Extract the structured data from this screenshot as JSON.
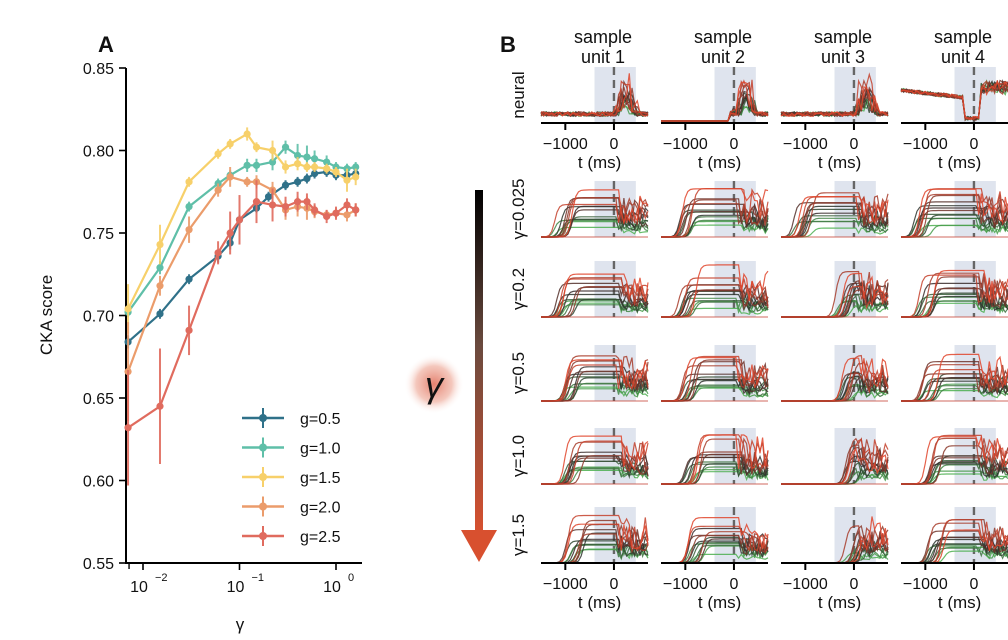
{
  "chart_data": [
    {
      "panel": "A",
      "type": "line",
      "xlabel": "γ",
      "ylabel": "CKA score",
      "xscale": "log",
      "xlim": [
        0.007,
        1.8
      ],
      "ylim": [
        0.55,
        0.85
      ],
      "yticks": [
        0.55,
        0.6,
        0.65,
        0.7,
        0.75,
        0.8,
        0.85
      ],
      "ytick_labels": [
        "0.55",
        "0.60",
        "0.65",
        "0.70",
        "0.75",
        "0.80",
        "0.85"
      ],
      "xticks": [
        0.01,
        0.1,
        1
      ],
      "xtick_labels": [
        {
          "base": "10",
          "exp": "−2"
        },
        {
          "base": "10",
          "exp": "−1"
        },
        {
          "base": "10",
          "exp": "0"
        }
      ],
      "legend_position": "lower-right",
      "error_bars": true,
      "series": [
        {
          "name": "g=0.5",
          "color": "#2f7189",
          "x": [
            0.007,
            0.015,
            0.03,
            0.06,
            0.08,
            0.1,
            0.15,
            0.2,
            0.3,
            0.4,
            0.5,
            0.6,
            0.8,
            1.0,
            1.3,
            1.6
          ],
          "y": [
            0.684,
            0.701,
            0.722,
            0.736,
            0.744,
            0.758,
            0.765,
            0.772,
            0.779,
            0.781,
            0.783,
            0.786,
            0.787,
            0.785,
            0.785,
            0.786
          ],
          "err": [
            0.004,
            0.003,
            0.003,
            0.004,
            0.004,
            0.003,
            0.003,
            0.003,
            0.003,
            0.003,
            0.003,
            0.003,
            0.003,
            0.003,
            0.003,
            0.003
          ]
        },
        {
          "name": "g=1.0",
          "color": "#5fbfa8",
          "x": [
            0.007,
            0.015,
            0.03,
            0.06,
            0.08,
            0.12,
            0.15,
            0.22,
            0.3,
            0.4,
            0.5,
            0.6,
            0.8,
            1.0,
            1.3,
            1.6
          ],
          "y": [
            0.702,
            0.729,
            0.766,
            0.78,
            0.785,
            0.791,
            0.791,
            0.793,
            0.802,
            0.797,
            0.796,
            0.795,
            0.793,
            0.79,
            0.789,
            0.79
          ],
          "err": [
            0.003,
            0.004,
            0.003,
            0.003,
            0.003,
            0.004,
            0.004,
            0.005,
            0.004,
            0.007,
            0.007,
            0.005,
            0.004,
            0.003,
            0.003,
            0.003
          ]
        },
        {
          "name": "g=1.5",
          "color": "#f7d06a",
          "x": [
            0.007,
            0.015,
            0.03,
            0.06,
            0.08,
            0.12,
            0.15,
            0.22,
            0.3,
            0.4,
            0.5,
            0.6,
            0.8,
            1.0,
            1.3,
            1.6
          ],
          "y": [
            0.704,
            0.743,
            0.781,
            0.798,
            0.804,
            0.81,
            0.802,
            0.8,
            0.79,
            0.792,
            0.79,
            0.79,
            0.789,
            0.787,
            0.782,
            0.784
          ],
          "err": [
            0.015,
            0.012,
            0.003,
            0.003,
            0.003,
            0.004,
            0.003,
            0.006,
            0.004,
            0.004,
            0.003,
            0.003,
            0.003,
            0.003,
            0.007,
            0.005
          ]
        },
        {
          "name": "g=2.0",
          "color": "#eb9c6b",
          "x": [
            0.007,
            0.015,
            0.03,
            0.06,
            0.08,
            0.12,
            0.15,
            0.22,
            0.3,
            0.4,
            0.5,
            0.6,
            0.8,
            1.0,
            1.3,
            1.6
          ],
          "y": [
            0.666,
            0.718,
            0.752,
            0.776,
            0.784,
            0.781,
            0.781,
            0.776,
            0.764,
            0.766,
            0.765,
            0.763,
            0.761,
            0.762,
            0.761,
            0.764
          ],
          "err": [
            0.03,
            0.006,
            0.008,
            0.004,
            0.006,
            0.003,
            0.004,
            0.005,
            0.006,
            0.006,
            0.007,
            0.004,
            0.003,
            0.003,
            0.004,
            0.004
          ]
        },
        {
          "name": "g=2.5",
          "color": "#e06b5e",
          "x": [
            0.007,
            0.015,
            0.03,
            0.06,
            0.08,
            0.1,
            0.15,
            0.22,
            0.3,
            0.4,
            0.5,
            0.6,
            0.8,
            1.0,
            1.3,
            1.6
          ],
          "y": [
            0.632,
            0.645,
            0.691,
            0.738,
            0.75,
            0.758,
            0.769,
            0.767,
            0.766,
            0.769,
            0.769,
            0.764,
            0.76,
            0.762,
            0.767,
            0.764
          ],
          "err": [
            0.035,
            0.035,
            0.015,
            0.007,
            0.013,
            0.015,
            0.013,
            0.01,
            0.006,
            0.006,
            0.005,
            0.004,
            0.004,
            0.004,
            0.004,
            0.004
          ]
        }
      ]
    },
    {
      "panel": "B",
      "type": "line",
      "description": "Small-multiple grid of firing-rate traces per sample unit (columns) for neural data and models at increasing γ (rows); traces colored green→black→red.",
      "columns": [
        "sample\nunit 1",
        "sample\nunit 2",
        "sample\nunit 3",
        "sample\nunit 4"
      ],
      "column_titles": [
        {
          "line1": "sample",
          "line2": "unit 1"
        },
        {
          "line1": "sample",
          "line2": "unit 2"
        },
        {
          "line1": "sample",
          "line2": "unit 3"
        },
        {
          "line1": "sample",
          "line2": "unit 4"
        }
      ],
      "rows": [
        "neural",
        "γ=0.025",
        "γ=0.2",
        "γ=0.5",
        "γ=1.0",
        "γ=1.5"
      ],
      "xlabel": "t (ms)",
      "xtick_labels": [
        "−1000",
        "0"
      ],
      "xticks": [
        -1000,
        0
      ],
      "xlim": [
        -1500,
        700
      ],
      "shaded_window_ms": [
        -400,
        450
      ],
      "event_marker_ms": 0,
      "trace_colors": {
        "low": "#4caf50",
        "mid": "#2b2b2b",
        "high": "#e0452c"
      },
      "shade_color": "#dfe4ee"
    }
  ],
  "figure": {
    "panel_labels": [
      "A",
      "B"
    ],
    "gamma_arrow": {
      "symbol": "γ",
      "top_color": "#000000",
      "bottom_color": "#d8502f"
    }
  }
}
